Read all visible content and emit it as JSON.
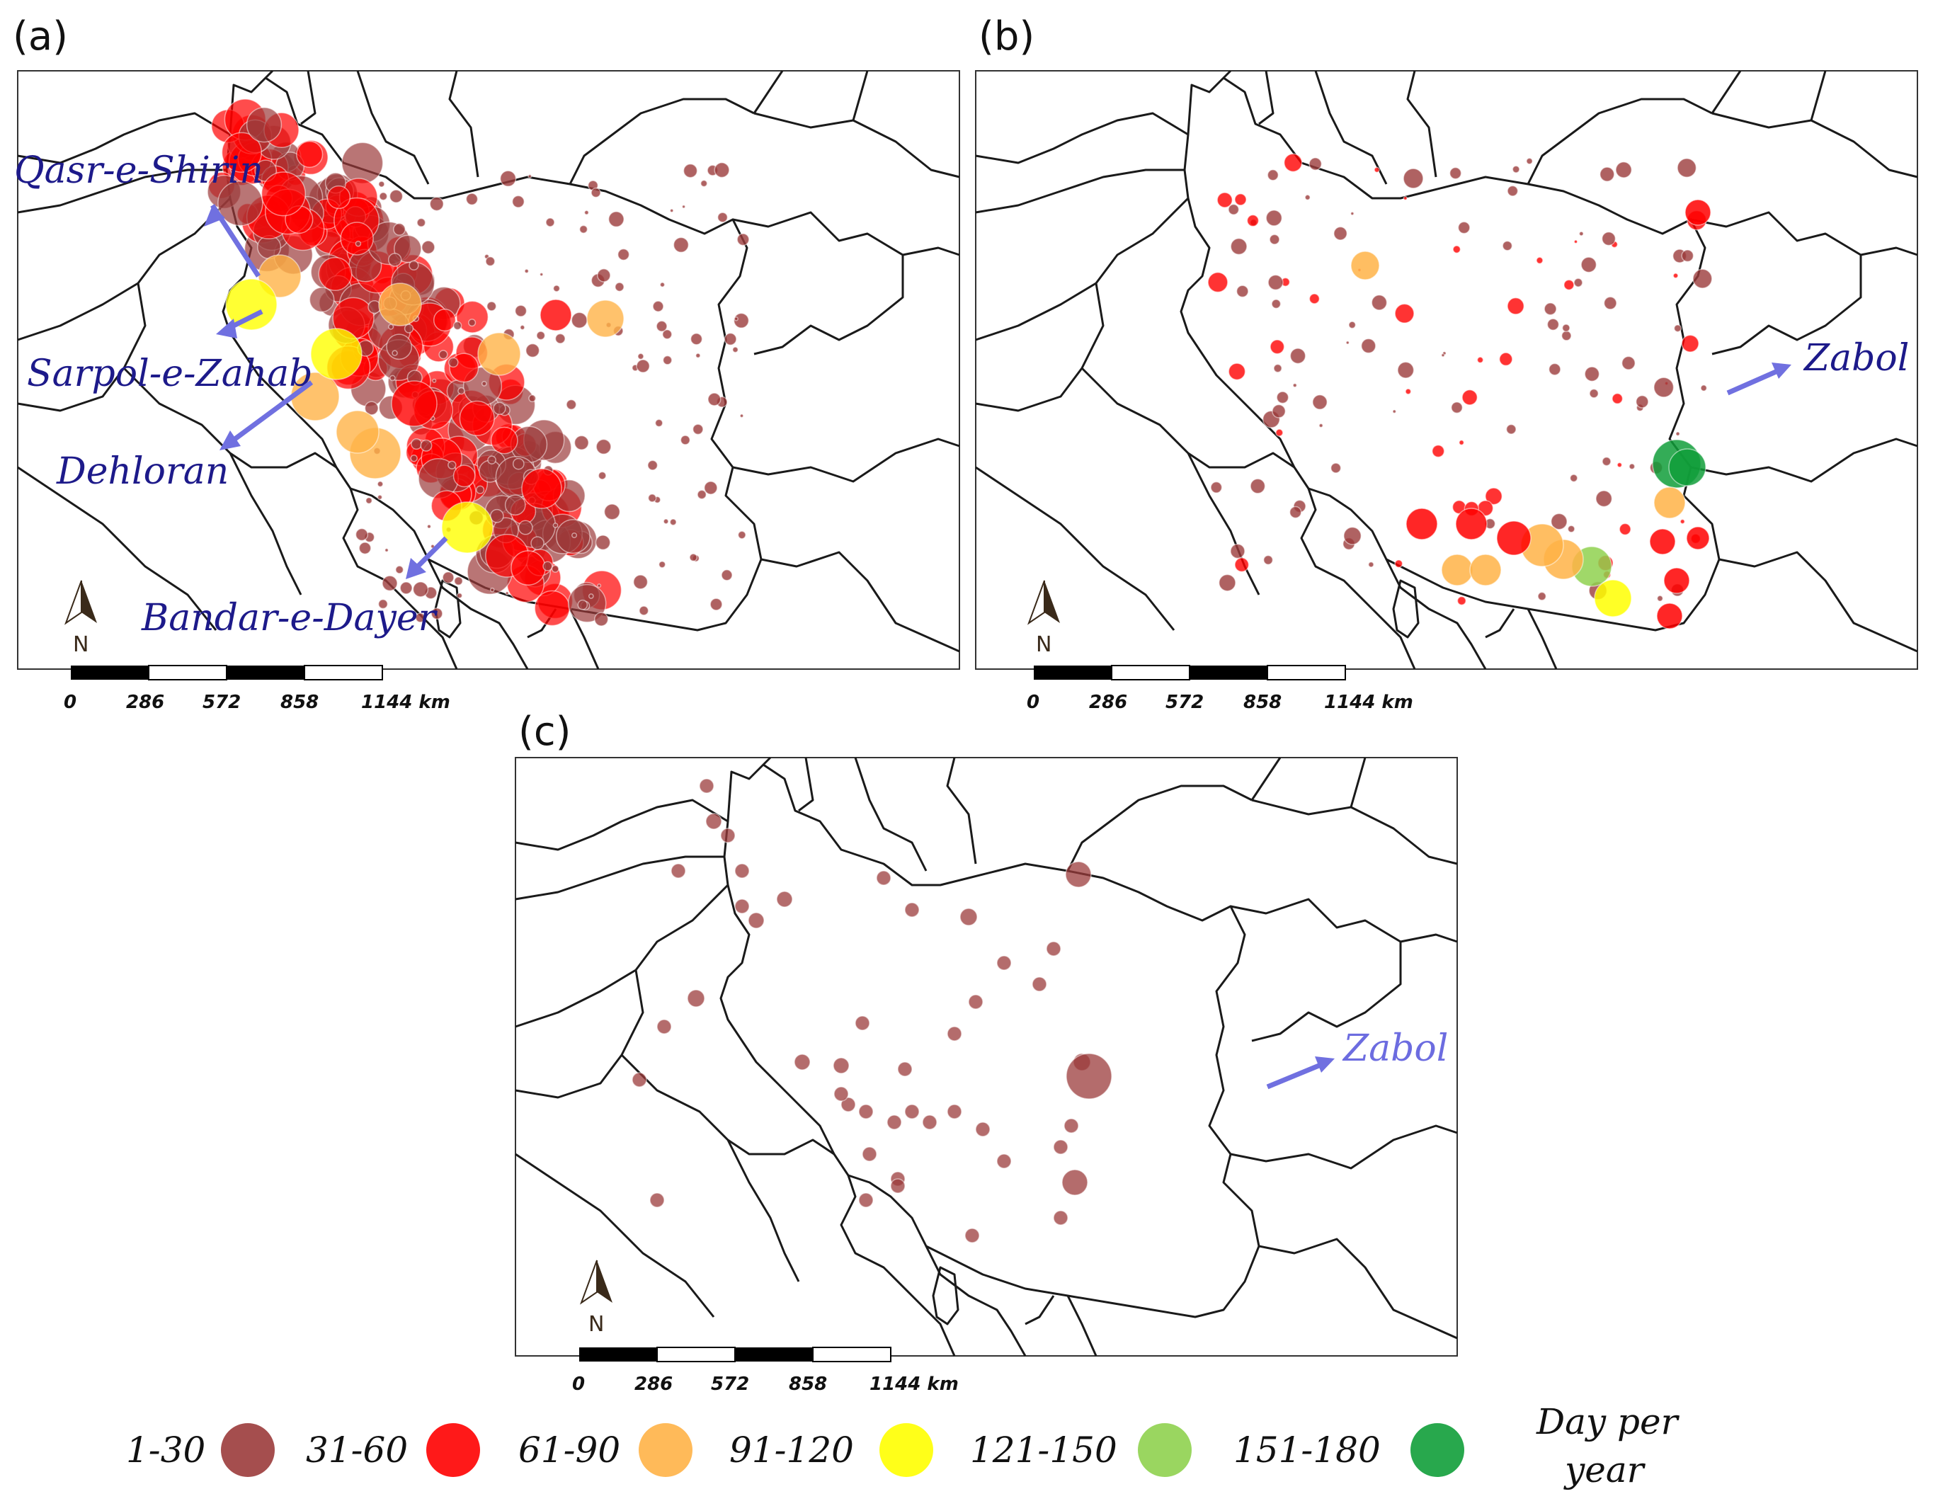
{
  "panels": [
    {
      "id": "a",
      "label": "(a)",
      "cities": [
        {
          "name": "Qasr-e-Shirin"
        },
        {
          "name": "Sarpol-e-Zahab"
        },
        {
          "name": "Dehloran"
        },
        {
          "name": "Bandar-e-Dayer"
        }
      ]
    },
    {
      "id": "b",
      "label": "(b)",
      "cities": [
        {
          "name": "Zabol"
        }
      ]
    },
    {
      "id": "c",
      "label": "(c)",
      "cities": [
        {
          "name": "Zabol"
        }
      ]
    }
  ],
  "scale_bar": {
    "ticks": [
      "0",
      "286",
      "572",
      "858",
      "1144 km"
    ]
  },
  "north_arrow": {
    "letter": "N"
  },
  "legend": {
    "title_line1": "Day per",
    "title_line2": "year",
    "classes": [
      {
        "label": "1-30",
        "color": "#9b3b3b"
      },
      {
        "label": "31-60",
        "color": "#ff0000"
      },
      {
        "label": "61-90",
        "color": "#ffb347"
      },
      {
        "label": "91-120",
        "color": "#ffff00"
      },
      {
        "label": "121-150",
        "color": "#8fd14f"
      },
      {
        "label": "151-180",
        "color": "#119e3a"
      }
    ]
  }
}
